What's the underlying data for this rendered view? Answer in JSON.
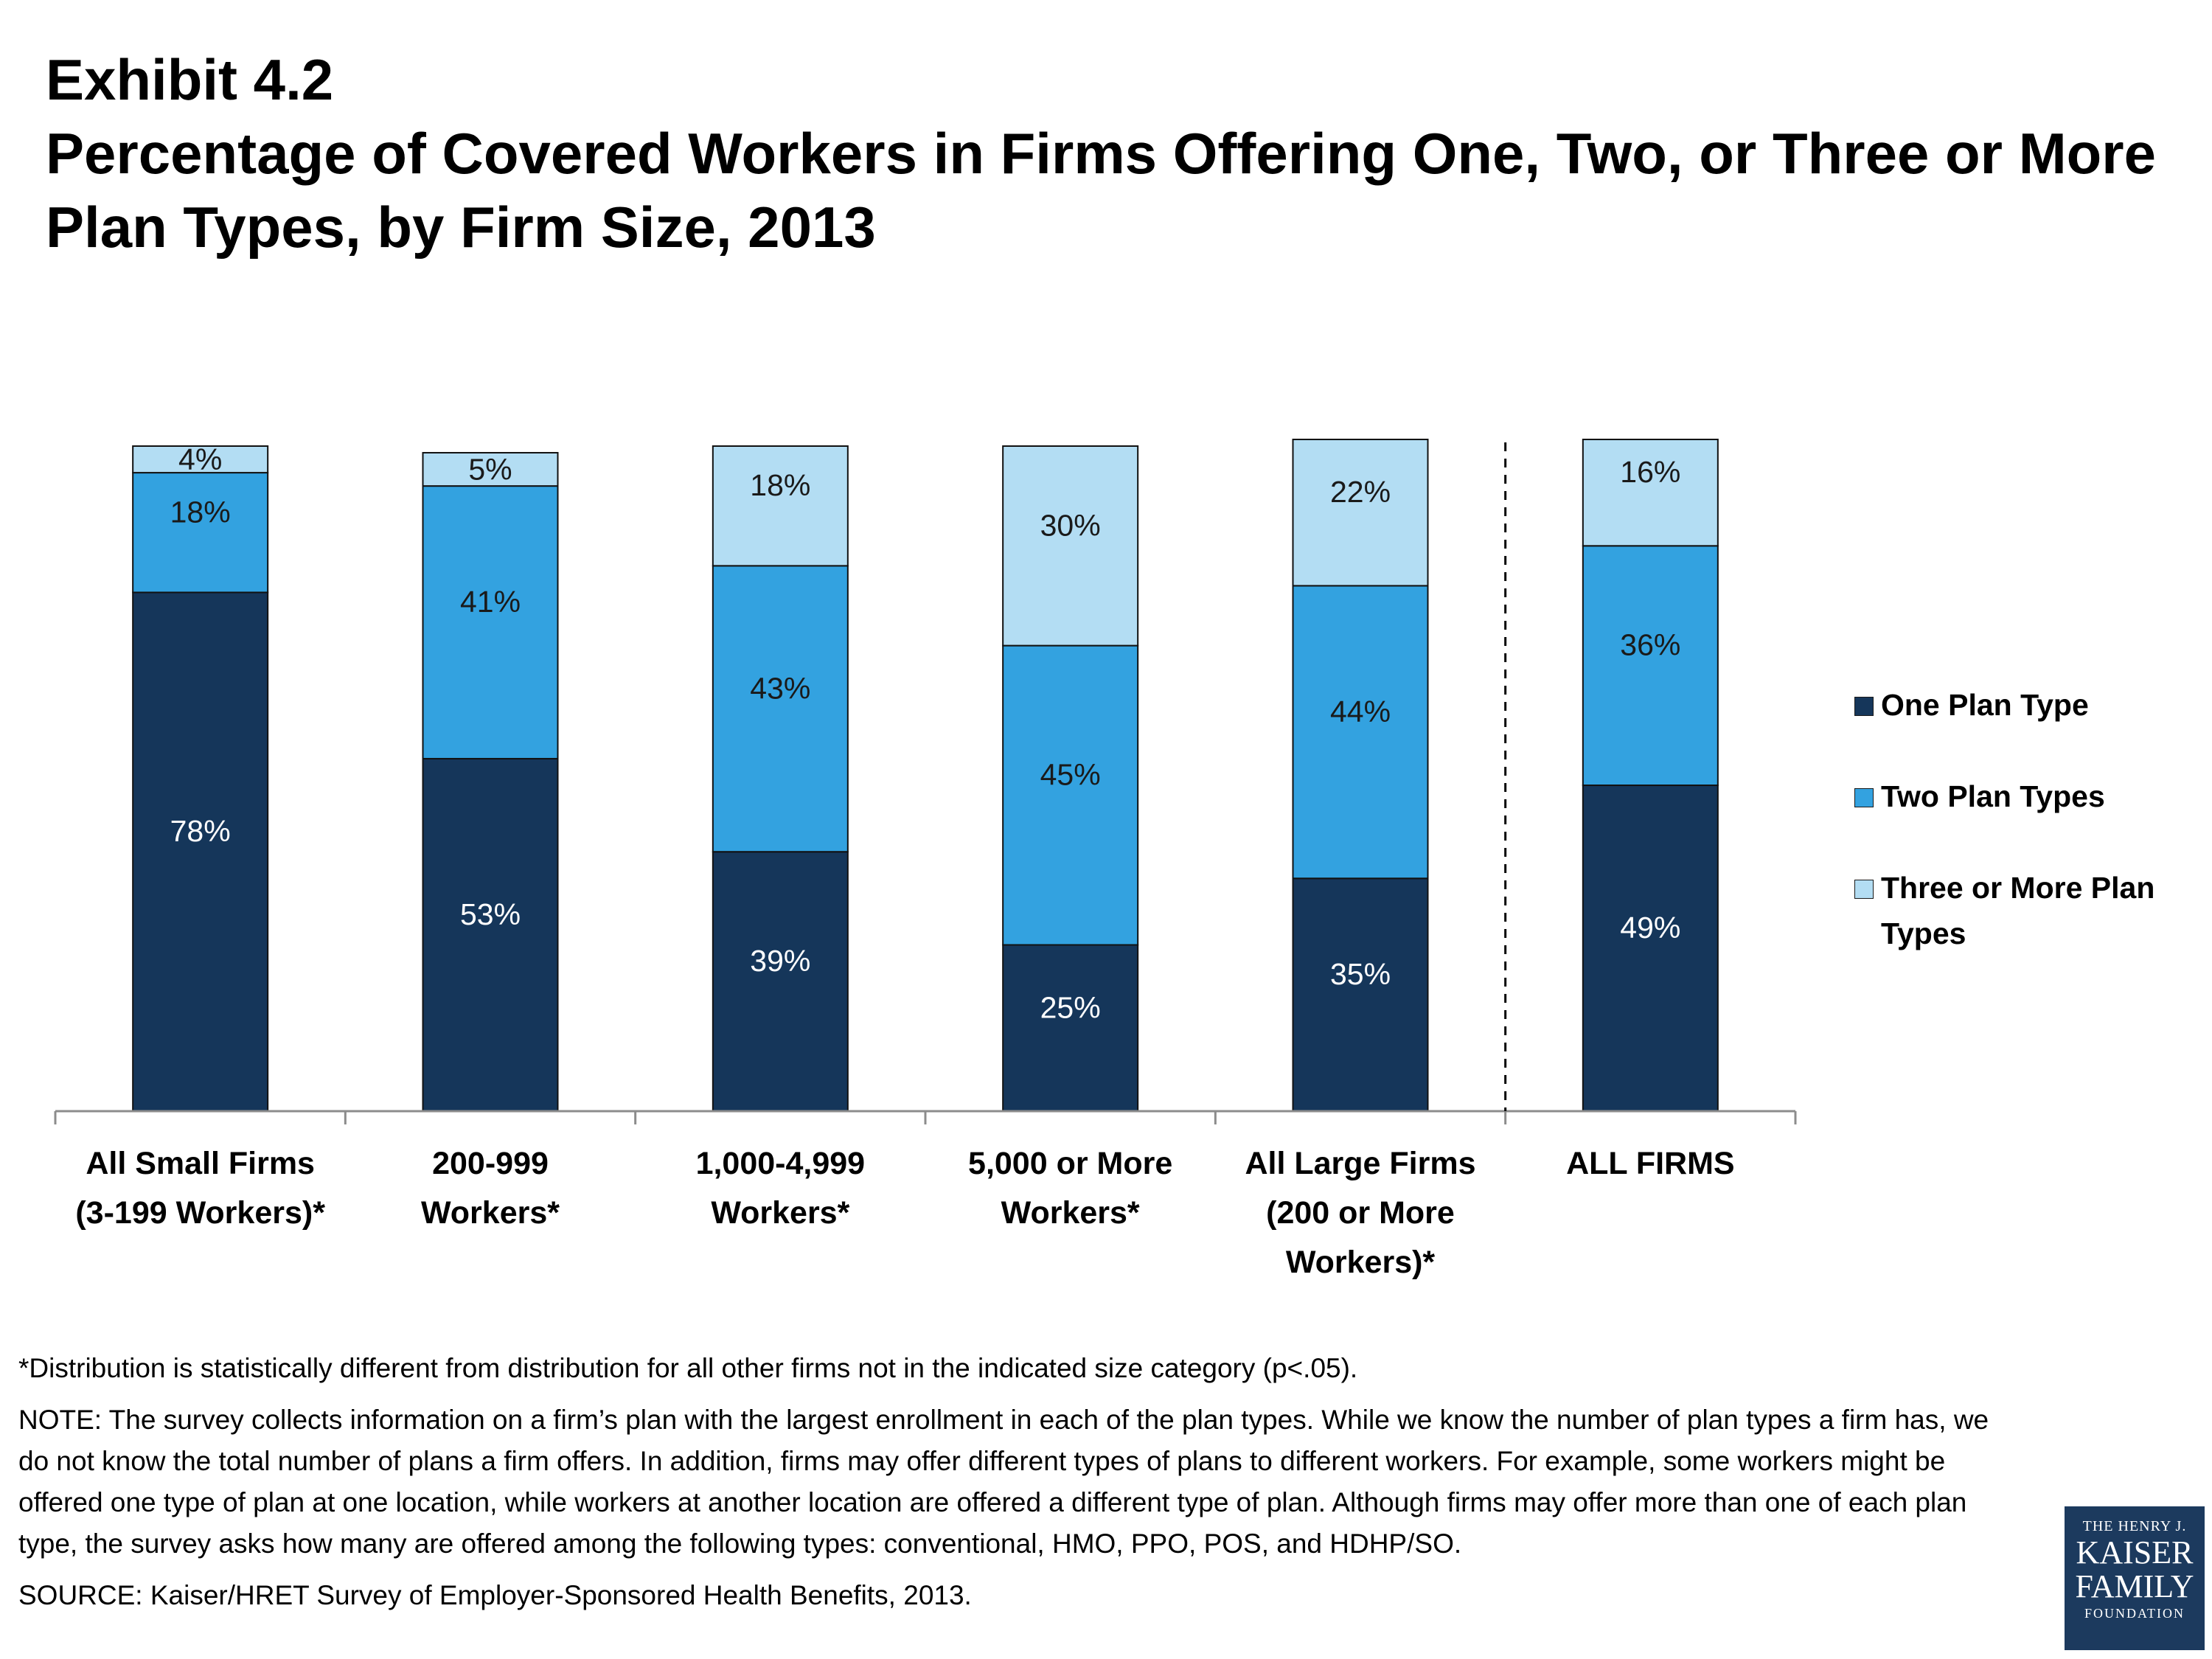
{
  "header": {
    "exhibit": "Exhibit 4.2",
    "title": "Percentage of Covered Workers in Firms Offering One, Two, or Three or More Plan Types, by Firm Size, 2013"
  },
  "chart_data": {
    "type": "bar",
    "stacked": true,
    "categories": [
      [
        "All Small Firms",
        "(3-199 Workers)*"
      ],
      [
        "200-999",
        "Workers*"
      ],
      [
        "1,000-4,999",
        "Workers*"
      ],
      [
        "5,000 or More",
        "Workers*"
      ],
      [
        "All Large Firms",
        "(200 or More",
        "Workers)*"
      ],
      [
        "ALL FIRMS"
      ]
    ],
    "series": [
      {
        "name": "One Plan Type",
        "color": "#15365a",
        "label_color": "#ffffff",
        "values": [
          78,
          53,
          39,
          25,
          35,
          49
        ]
      },
      {
        "name": "Two Plan Types",
        "color": "#33a2e0",
        "label_color": "#1a1a1a",
        "values": [
          18,
          41,
          43,
          45,
          44,
          36
        ]
      },
      {
        "name": "Three or More Plan Types",
        "color": "#b3ddf3",
        "label_color": "#1a1a1a",
        "values": [
          4,
          5,
          18,
          30,
          22,
          16
        ]
      }
    ],
    "ylim": [
      0,
      100
    ],
    "divider_after_category": 4,
    "legend_position": "right",
    "grid": false
  },
  "legend": {
    "items": [
      {
        "label": "One Plan Type",
        "color": "#15365a"
      },
      {
        "label": "Two Plan Types",
        "color": "#33a2e0"
      },
      {
        "label": "Three or More Plan Types",
        "color": "#b3ddf3"
      }
    ]
  },
  "notes": {
    "footnote": "*Distribution is statistically different from distribution for all other firms not in the indicated size category (p<.05).",
    "note": "NOTE:  The survey collects information on a firm’s plan with the largest enrollment in each of the plan types. While we know the number of plan types a firm has, we do not know the total number of plans a firm offers. In addition, firms may offer different types of plans to different workers. For example, some workers might be offered one type of plan at one location, while workers at another location are offered a different type of plan.  Although firms may offer more than one of each plan type, the survey asks how many are offered among the following types: conventional, HMO, PPO, POS, and HDHP/SO.",
    "source": "SOURCE: Kaiser/HRET Survey of Employer-Sponsored Health Benefits, 2013."
  },
  "logo": {
    "line1": "THE HENRY J.",
    "line2": "KAISER",
    "line3": "FAMILY",
    "line4": "FOUNDATION"
  }
}
